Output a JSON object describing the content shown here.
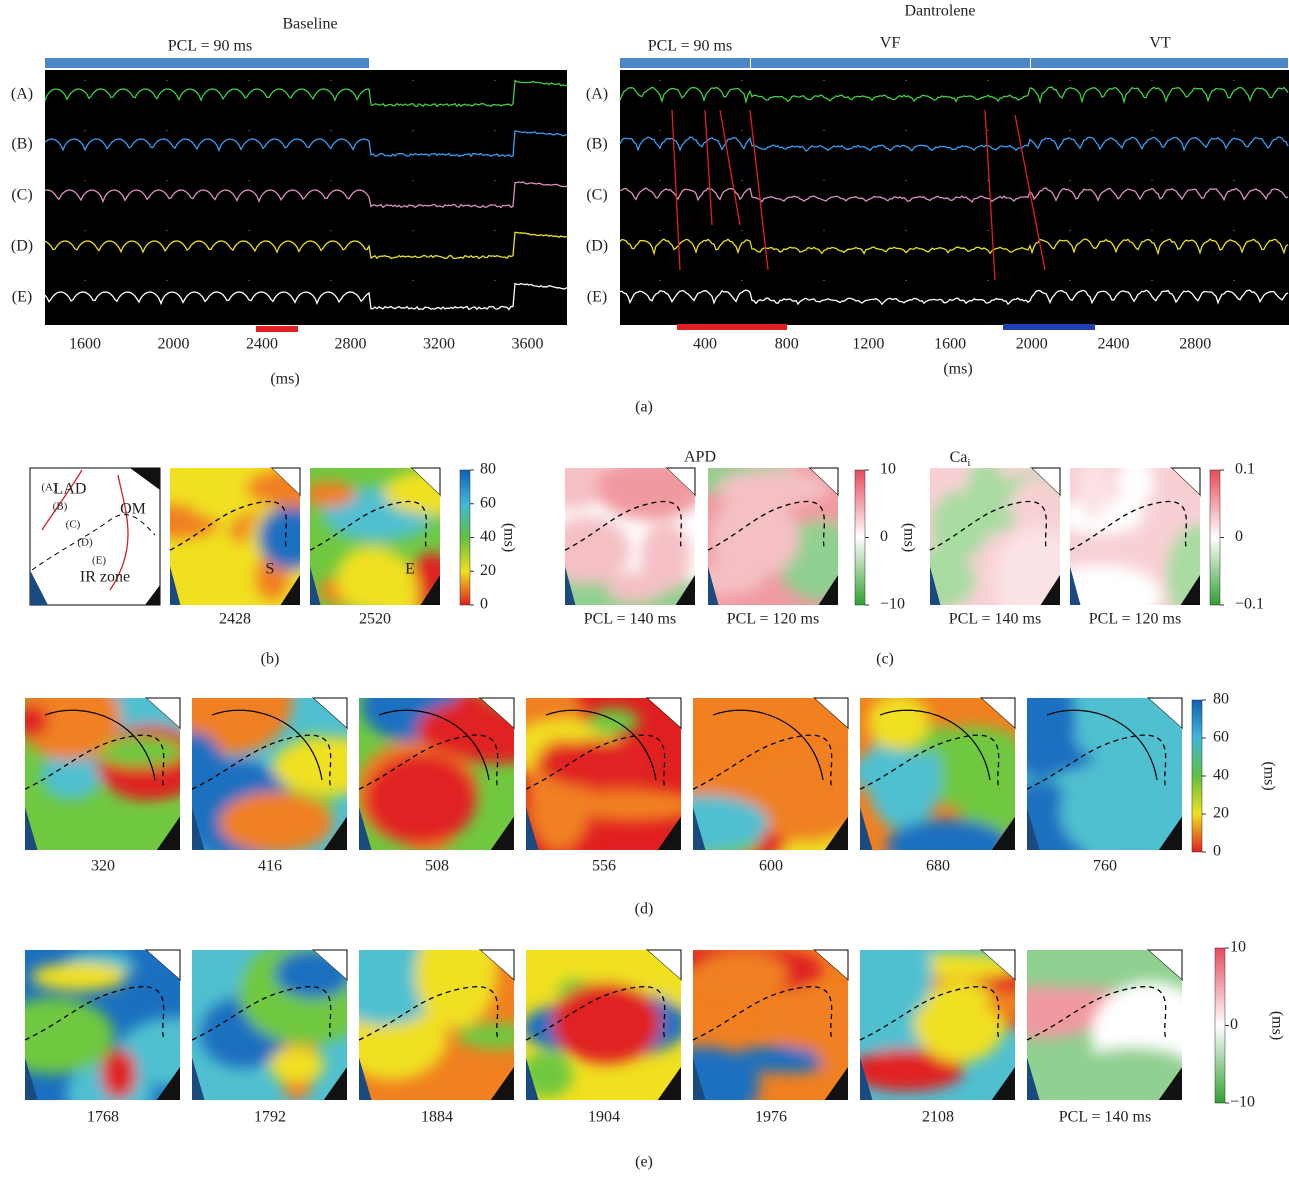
{
  "panel_a": {
    "label": "(a)",
    "baseline": {
      "title": "Baseline",
      "segments": [
        "PCL = 90 ms"
      ],
      "channels": [
        "(A)",
        "(B)",
        "(C)",
        "(D)",
        "(E)"
      ],
      "xticks": [
        1600,
        2000,
        2400,
        2800,
        3200,
        3600
      ],
      "xlabel": "(ms)"
    },
    "dantrolene": {
      "title": "Dantrolene",
      "segments": [
        "PCL = 90 ms",
        "VF",
        "VT"
      ],
      "channels": [
        "(A)",
        "(B)",
        "(C)",
        "(D)",
        "(E)"
      ],
      "xticks": [
        400,
        800,
        1200,
        1600,
        2000,
        2400,
        2800
      ],
      "xlabel": "(ms)"
    }
  },
  "panel_b": {
    "label": "(b)",
    "schematic": [
      "(A)",
      "(B)",
      "(C)",
      "(D)",
      "(E)",
      "LAD",
      "OM",
      "IR zone"
    ],
    "maps": [
      2428,
      2520
    ],
    "map_letters": [
      "S",
      "E"
    ],
    "colorbar": {
      "ticks": [
        80,
        60,
        40,
        20,
        0
      ],
      "unit": "(ms)"
    }
  },
  "panel_c": {
    "label": "(c)",
    "apd": {
      "title": "APD",
      "maps": [
        "PCL = 140 ms",
        "PCL = 120 ms"
      ],
      "colorbar": {
        "ticks": [
          10,
          0,
          {
            "value": -10,
            "label": "−10"
          }
        ],
        "unit": "(ms)"
      }
    },
    "cai": {
      "title": "Ca",
      "title_sub": "i",
      "maps": [
        "PCL = 140 ms",
        "PCL = 120 ms"
      ],
      "colorbar": {
        "ticks": [
          0.1,
          0,
          {
            "value": -0.1,
            "label": "−0.1"
          }
        ]
      }
    }
  },
  "panel_d": {
    "label": "(d)",
    "maps": [
      320,
      416,
      508,
      556,
      600,
      680,
      760
    ],
    "colorbar": {
      "ticks": [
        80,
        60,
        40,
        20,
        0
      ],
      "unit": "(ms)"
    }
  },
  "panel_e": {
    "label": "(e)",
    "maps": [
      1768,
      1792,
      1884,
      1904,
      1976,
      2108,
      "PCL = 140 ms"
    ],
    "colorbar": {
      "ticks": [
        10,
        0,
        {
          "value": -10,
          "label": "−10"
        }
      ],
      "unit": "(ms)"
    }
  }
}
